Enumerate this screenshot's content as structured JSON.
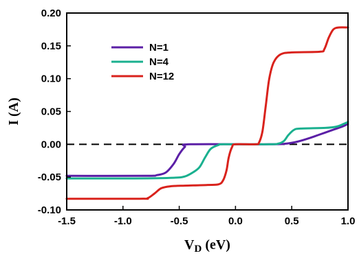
{
  "chart_data": {
    "type": "line",
    "xlabel_main": "V",
    "xlabel_sub": "D",
    "xlabel_unit": " (eV)",
    "ylabel": "I (A)",
    "xlim": [
      -1.5,
      1.0
    ],
    "ylim": [
      -0.1,
      0.2
    ],
    "x_ticks": [
      {
        "v": -1.5,
        "label": "-1.5"
      },
      {
        "v": -1.0,
        "label": "-1.0"
      },
      {
        "v": -0.5,
        "label": "-0.5"
      },
      {
        "v": 0.0,
        "label": "0.0"
      },
      {
        "v": 0.5,
        "label": "0.5"
      },
      {
        "v": 1.0,
        "label": "1.0"
      }
    ],
    "y_ticks": [
      {
        "v": -0.1,
        "label": "-0.10"
      },
      {
        "v": -0.05,
        "label": "-0.05"
      },
      {
        "v": 0.0,
        "label": "0.00"
      },
      {
        "v": 0.05,
        "label": "0.05"
      },
      {
        "v": 0.1,
        "label": "0.10"
      },
      {
        "v": 0.15,
        "label": "0.15"
      },
      {
        "v": 0.2,
        "label": "0.20"
      }
    ],
    "reference_line": {
      "y": 0.0,
      "style": "dashed",
      "color": "#000000"
    },
    "legend_placement": "upper-left",
    "series": [
      {
        "name": "N=1",
        "color": "#5b1fa6",
        "points": [
          [
            -1.5,
            -0.048
          ],
          [
            -0.8,
            -0.048
          ],
          [
            -0.7,
            -0.047
          ],
          [
            -0.62,
            -0.043
          ],
          [
            -0.55,
            -0.03
          ],
          [
            -0.5,
            -0.015
          ],
          [
            -0.45,
            -0.004
          ],
          [
            -0.4,
            0.0
          ],
          [
            0.3,
            0.0
          ],
          [
            0.45,
            0.001
          ],
          [
            0.55,
            0.004
          ],
          [
            0.65,
            0.009
          ],
          [
            0.75,
            0.015
          ],
          [
            0.85,
            0.021
          ],
          [
            0.95,
            0.027
          ],
          [
            1.0,
            0.031
          ]
        ]
      },
      {
        "name": "N=4",
        "color": "#1ab08f",
        "points": [
          [
            -1.5,
            -0.052
          ],
          [
            -0.9,
            -0.052
          ],
          [
            -0.55,
            -0.051
          ],
          [
            -0.45,
            -0.049
          ],
          [
            -0.38,
            -0.043
          ],
          [
            -0.32,
            -0.035
          ],
          [
            -0.27,
            -0.02
          ],
          [
            -0.22,
            -0.007
          ],
          [
            -0.15,
            -0.001
          ],
          [
            -0.1,
            0.0
          ],
          [
            0.3,
            0.0
          ],
          [
            0.38,
            0.001
          ],
          [
            0.43,
            0.005
          ],
          [
            0.47,
            0.014
          ],
          [
            0.52,
            0.022
          ],
          [
            0.58,
            0.024
          ],
          [
            0.8,
            0.025
          ],
          [
            0.9,
            0.027
          ],
          [
            0.96,
            0.031
          ],
          [
            1.0,
            0.034
          ]
        ]
      },
      {
        "name": "N=12",
        "color": "#d9221c",
        "points": [
          [
            -1.5,
            -0.083
          ],
          [
            -0.85,
            -0.083
          ],
          [
            -0.78,
            -0.082
          ],
          [
            -0.72,
            -0.075
          ],
          [
            -0.66,
            -0.067
          ],
          [
            -0.58,
            -0.064
          ],
          [
            -0.45,
            -0.063
          ],
          [
            -0.25,
            -0.062
          ],
          [
            -0.15,
            -0.061
          ],
          [
            -0.11,
            -0.055
          ],
          [
            -0.08,
            -0.04
          ],
          [
            -0.06,
            -0.02
          ],
          [
            -0.03,
            -0.004
          ],
          [
            0.0,
            0.0
          ],
          [
            0.18,
            0.0
          ],
          [
            0.21,
            0.003
          ],
          [
            0.24,
            0.02
          ],
          [
            0.27,
            0.06
          ],
          [
            0.3,
            0.1
          ],
          [
            0.34,
            0.125
          ],
          [
            0.4,
            0.137
          ],
          [
            0.5,
            0.14
          ],
          [
            0.75,
            0.141
          ],
          [
            0.79,
            0.145
          ],
          [
            0.83,
            0.163
          ],
          [
            0.87,
            0.175
          ],
          [
            0.92,
            0.178
          ],
          [
            1.0,
            0.178
          ]
        ]
      }
    ]
  }
}
